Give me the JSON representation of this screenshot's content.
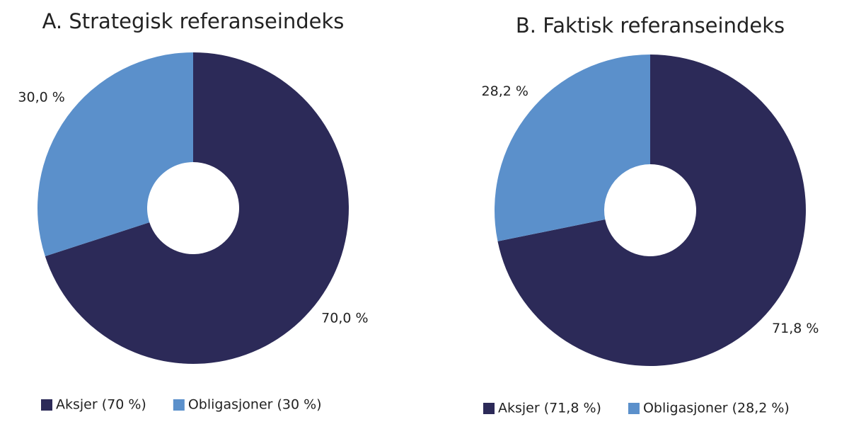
{
  "chart_data": [
    {
      "type": "pie",
      "title": "A. Strategisk referanseindeks",
      "categories": [
        "Aksjer (70 %)",
        "Obligasjoner (30 %)"
      ],
      "values": [
        70,
        30
      ],
      "value_labels": [
        "70,0 %",
        "30,0 %"
      ],
      "colors": [
        "#2c2a58",
        "#5b90cb"
      ]
    },
    {
      "type": "pie",
      "title": "B. Faktisk referanseindeks",
      "categories": [
        "Aksjer (71,8 %)",
        "Obligasjoner (28,2 %)"
      ],
      "values": [
        71.8,
        28.2
      ],
      "value_labels": [
        "71,8 %",
        "28,2 %"
      ],
      "colors": [
        "#2c2a58",
        "#5b90cb"
      ]
    }
  ]
}
